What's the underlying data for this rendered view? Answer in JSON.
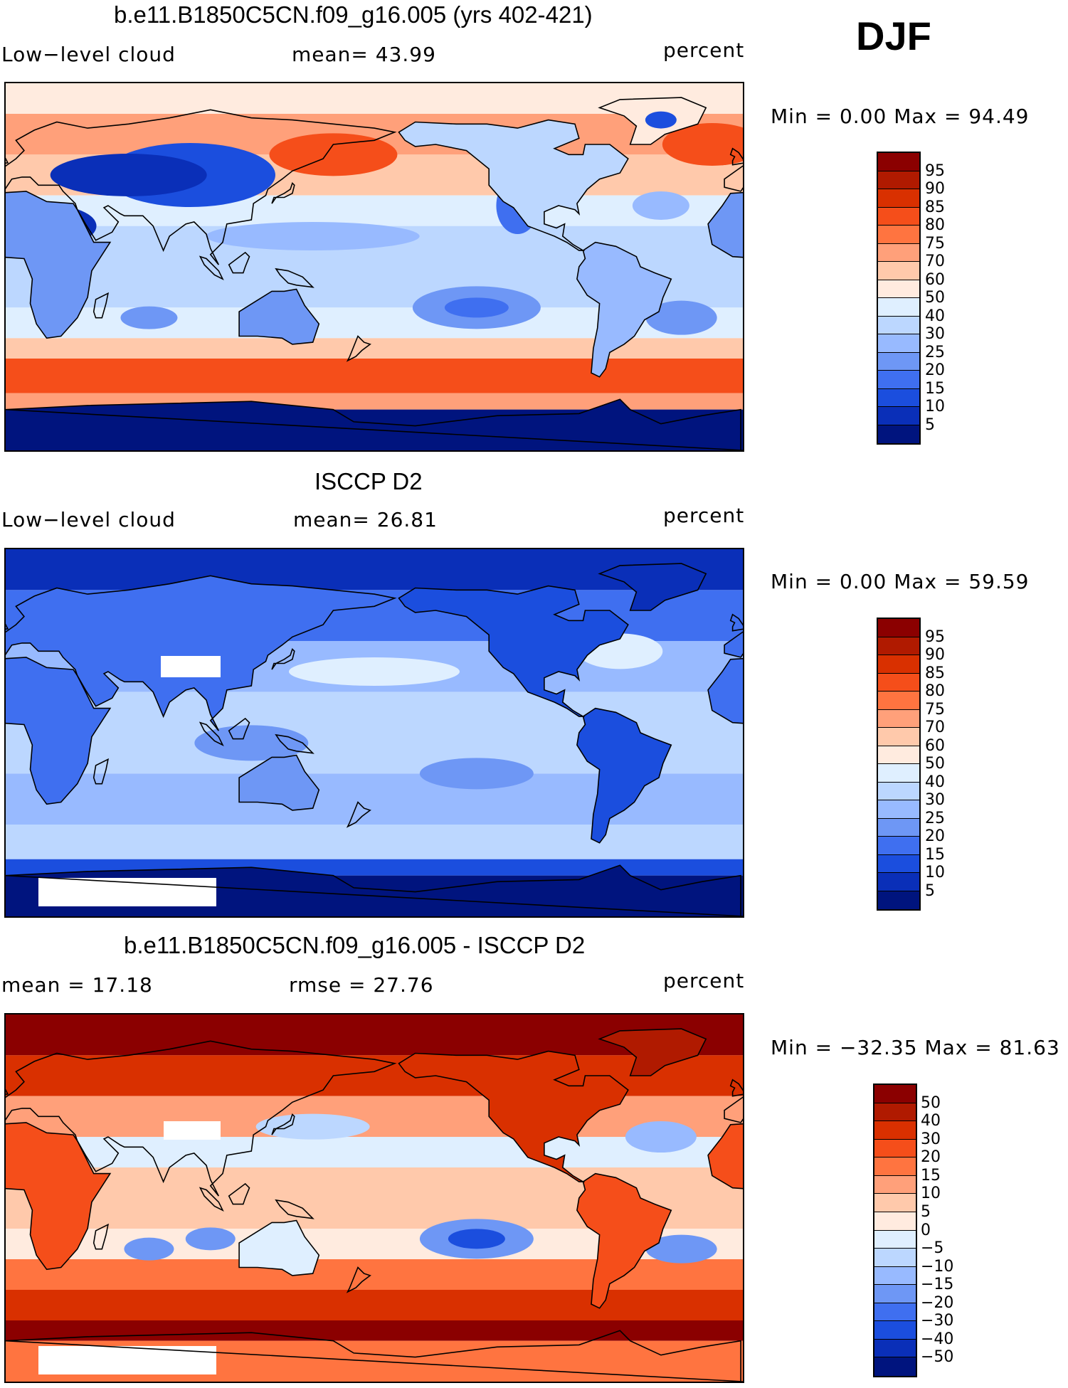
{
  "season": "DJF",
  "panels": [
    {
      "title": "b.e11.B1850C5CN.f09_g16.005 (yrs 402-421)",
      "left_label": "Low−level cloud",
      "center_label": "mean=   43.99",
      "units": "percent",
      "min_max": "Min =    0.00 Max =   94.49",
      "field": "model",
      "colorbar_labels": [
        "95",
        "90",
        "85",
        "80",
        "75",
        "70",
        "60",
        "50",
        "40",
        "30",
        "25",
        "20",
        "15",
        "10",
        "5"
      ]
    },
    {
      "title": "ISCCP D2",
      "left_label": "Low−level cloud",
      "center_label": "mean=   26.81",
      "units": "percent",
      "min_max": "Min =    0.00 Max =   59.59",
      "field": "obs",
      "colorbar_labels": [
        "95",
        "90",
        "85",
        "80",
        "75",
        "70",
        "60",
        "50",
        "40",
        "30",
        "25",
        "20",
        "15",
        "10",
        "5"
      ]
    },
    {
      "title": "b.e11.B1850C5CN.f09_g16.005 - ISCCP D2",
      "left_label": "mean =   17.18",
      "center_label": "rmse =   27.76",
      "units": "percent",
      "min_max": "Min = −32.35 Max =   81.63",
      "field": "diff",
      "colorbar_labels": [
        "50",
        "40",
        "30",
        "20",
        "15",
        "10",
        "5",
        "0",
        "−5",
        "−10",
        "−15",
        "−20",
        "−30",
        "−40",
        "−50"
      ]
    }
  ],
  "colors": {
    "abs_scale": [
      "#8b0000",
      "#b01a00",
      "#d93000",
      "#f54e1a",
      "#ff7440",
      "#ffa07a",
      "#ffc9ab",
      "#ffebdf",
      "#dfefff",
      "#bcd7ff",
      "#98baff",
      "#6e97f5",
      "#3f6ff0",
      "#1b4ede",
      "#0a2fb8",
      "#00147e"
    ],
    "diff_scale": [
      "#8b0000",
      "#b01a00",
      "#d93000",
      "#f54e1a",
      "#ff7440",
      "#ffa07a",
      "#ffc9ab",
      "#ffebdf",
      "#dfefff",
      "#bcd7ff",
      "#98baff",
      "#6e97f5",
      "#3f6ff0",
      "#1b4ede",
      "#0a2fb8",
      "#00147e"
    ]
  }
}
